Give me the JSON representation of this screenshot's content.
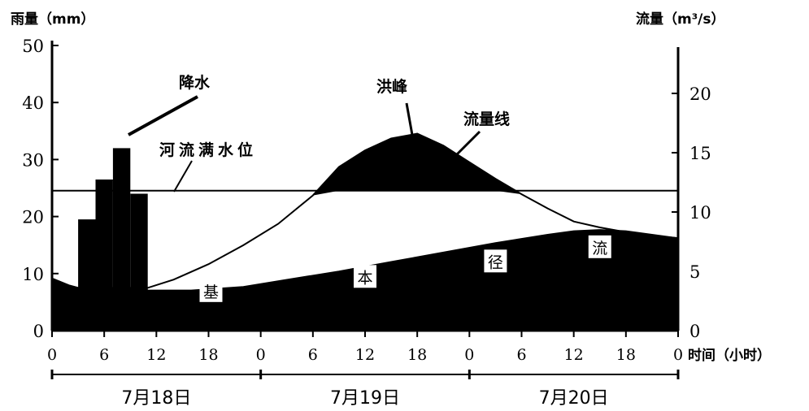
{
  "chart_data": {
    "type": "bar+area+line",
    "left_axis": {
      "title": "雨量（mm）",
      "range": [
        0,
        50
      ],
      "ticks": [
        "0",
        "10",
        "20",
        "30",
        "40",
        "50"
      ]
    },
    "right_axis": {
      "title": "流量（m³/s）",
      "range": [
        0,
        25
      ],
      "ticks": [
        "0",
        "5",
        "10",
        "15",
        "20"
      ]
    },
    "x_axis": {
      "title": "时间（小时）",
      "range_hours": [
        0,
        72
      ],
      "tick_labels": [
        "0",
        "6",
        "12",
        "18",
        "0",
        "6",
        "12",
        "18",
        "0",
        "6",
        "12",
        "18",
        "0"
      ],
      "days": [
        "7月18日",
        "7月19日",
        "7月20日"
      ]
    },
    "rainfall_bars": {
      "name": "降水",
      "bins": [
        {
          "start_h": 3,
          "end_h": 5,
          "value": 19.5
        },
        {
          "start_h": 5,
          "end_h": 7,
          "value": 26.5
        },
        {
          "start_h": 7,
          "end_h": 9,
          "value": 32
        },
        {
          "start_h": 9,
          "end_h": 11,
          "value": 24
        }
      ]
    },
    "streamflow_total": {
      "name": "流量线",
      "x": [
        0,
        2,
        3,
        11,
        14,
        18,
        22,
        26,
        30,
        33,
        36,
        39,
        42,
        45,
        48,
        51,
        54,
        57,
        60,
        63,
        66,
        69,
        72
      ],
      "y": [
        4.4,
        3.8,
        3.6,
        3.6,
        4.3,
        5.6,
        7.2,
        9.0,
        11.4,
        13.8,
        15.2,
        16.2,
        16.6,
        15.6,
        14.2,
        12.8,
        11.5,
        10.3,
        9.2,
        8.7,
        8.3,
        8.0,
        7.8
      ]
    },
    "baseflow": {
      "name": "基本径流",
      "labels": [
        "基",
        "本",
        "径",
        "流"
      ],
      "x": [
        0,
        2,
        3,
        11,
        16,
        22,
        27,
        33,
        39,
        45,
        51,
        57,
        60,
        63,
        66,
        69,
        72
      ],
      "y": [
        4.4,
        3.8,
        3.6,
        3.4,
        3.4,
        3.7,
        4.3,
        5.0,
        5.8,
        6.6,
        7.4,
        8.1,
        8.4,
        8.5,
        8.4,
        8.1,
        7.8
      ]
    },
    "bankfull_stage": {
      "name": "河流满水位",
      "value": 11.8
    },
    "annotations": {
      "rain": "降水",
      "peak": "洪峰",
      "line": "流量线",
      "bankfull": "河流满水位"
    }
  }
}
